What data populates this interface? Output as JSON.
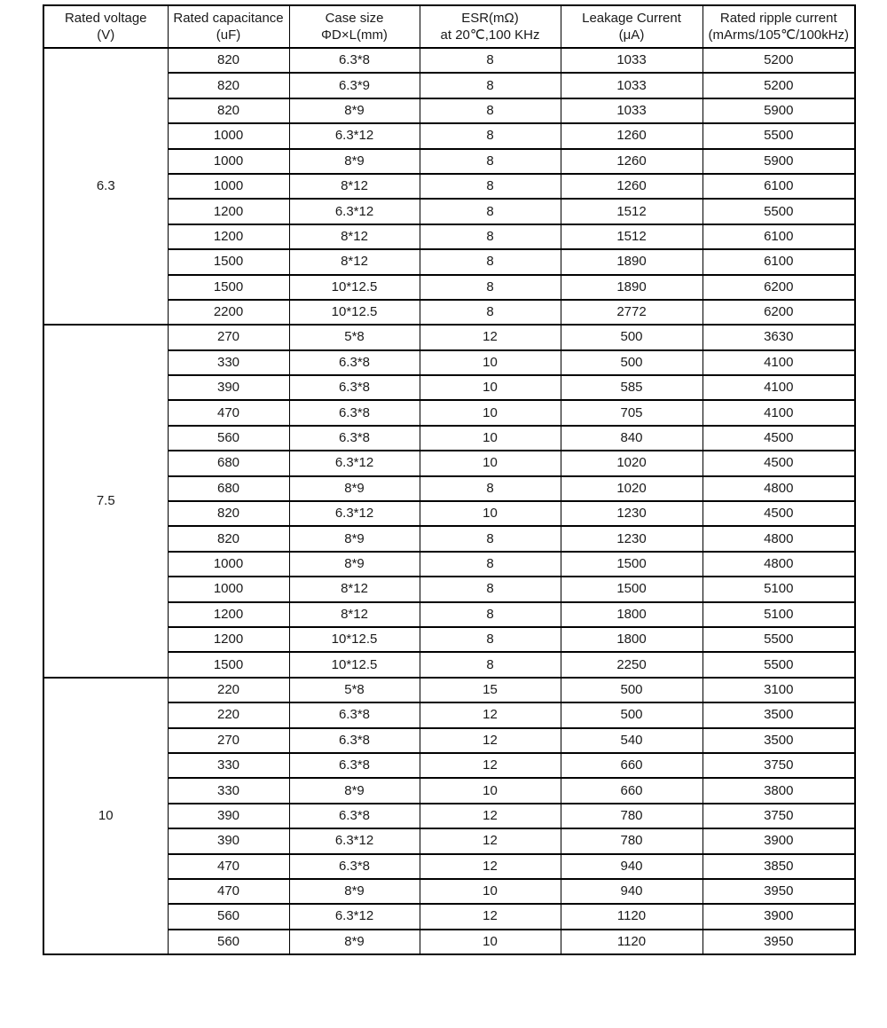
{
  "table": {
    "headers": [
      {
        "title": "Rated voltage",
        "sub": "(V)"
      },
      {
        "title": "Rated capacitance",
        "sub": "(uF)"
      },
      {
        "title": "Case  size",
        "sub": "ΦD×L(mm)"
      },
      {
        "title": "ESR(mΩ)",
        "sub": "at 20℃,100 KHz"
      },
      {
        "title": "Leakage Current",
        "sub": "(μA)"
      },
      {
        "title": "Rated ripple current",
        "sub": "(mArms/105℃/100kHz)"
      }
    ],
    "columns_semantic": [
      "rated-voltage",
      "rated-capacitance",
      "case-size",
      "esr",
      "leakage-current",
      "rated-ripple-current"
    ],
    "groups": [
      {
        "voltage": "6.3",
        "rows": [
          [
            "820",
            "6.3*8",
            "8",
            "1033",
            "5200"
          ],
          [
            "820",
            "6.3*9",
            "8",
            "1033",
            "5200"
          ],
          [
            "820",
            "8*9",
            "8",
            "1033",
            "5900"
          ],
          [
            "1000",
            "6.3*12",
            "8",
            "1260",
            "5500"
          ],
          [
            "1000",
            "8*9",
            "8",
            "1260",
            "5900"
          ],
          [
            "1000",
            "8*12",
            "8",
            "1260",
            "6100"
          ],
          [
            "1200",
            "6.3*12",
            "8",
            "1512",
            "5500"
          ],
          [
            "1200",
            "8*12",
            "8",
            "1512",
            "6100"
          ],
          [
            "1500",
            "8*12",
            "8",
            "1890",
            "6100"
          ],
          [
            "1500",
            "10*12.5",
            "8",
            "1890",
            "6200"
          ],
          [
            "2200",
            "10*12.5",
            "8",
            "2772",
            "6200"
          ]
        ]
      },
      {
        "voltage": "7.5",
        "rows": [
          [
            "270",
            "5*8",
            "12",
            "500",
            "3630"
          ],
          [
            "330",
            "6.3*8",
            "10",
            "500",
            "4100"
          ],
          [
            "390",
            "6.3*8",
            "10",
            "585",
            "4100"
          ],
          [
            "470",
            "6.3*8",
            "10",
            "705",
            "4100"
          ],
          [
            "560",
            "6.3*8",
            "10",
            "840",
            "4500"
          ],
          [
            "680",
            "6.3*12",
            "10",
            "1020",
            "4500"
          ],
          [
            "680",
            "8*9",
            "8",
            "1020",
            "4800"
          ],
          [
            "820",
            "6.3*12",
            "10",
            "1230",
            "4500"
          ],
          [
            "820",
            "8*9",
            "8",
            "1230",
            "4800"
          ],
          [
            "1000",
            "8*9",
            "8",
            "1500",
            "4800"
          ],
          [
            "1000",
            "8*12",
            "8",
            "1500",
            "5100"
          ],
          [
            "1200",
            "8*12",
            "8",
            "1800",
            "5100"
          ],
          [
            "1200",
            "10*12.5",
            "8",
            "1800",
            "5500"
          ],
          [
            "1500",
            "10*12.5",
            "8",
            "2250",
            "5500"
          ]
        ]
      },
      {
        "voltage": "10",
        "rows": [
          [
            "220",
            "5*8",
            "15",
            "500",
            "3100"
          ],
          [
            "220",
            "6.3*8",
            "12",
            "500",
            "3500"
          ],
          [
            "270",
            "6.3*8",
            "12",
            "540",
            "3500"
          ],
          [
            "330",
            "6.3*8",
            "12",
            "660",
            "3750"
          ],
          [
            "330",
            "8*9",
            "10",
            "660",
            "3800"
          ],
          [
            "390",
            "6.3*8",
            "12",
            "780",
            "3750"
          ],
          [
            "390",
            "6.3*12",
            "12",
            "780",
            "3900"
          ],
          [
            "470",
            "6.3*8",
            "12",
            "940",
            "3850"
          ],
          [
            "470",
            "8*9",
            "10",
            "940",
            "3950"
          ],
          [
            "560",
            "6.3*12",
            "12",
            "1120",
            "3900"
          ],
          [
            "560",
            "8*9",
            "10",
            "1120",
            "3950"
          ]
        ]
      }
    ],
    "border_color": "#000000",
    "text_color": "#1a1a1a",
    "background_color": "#ffffff"
  }
}
